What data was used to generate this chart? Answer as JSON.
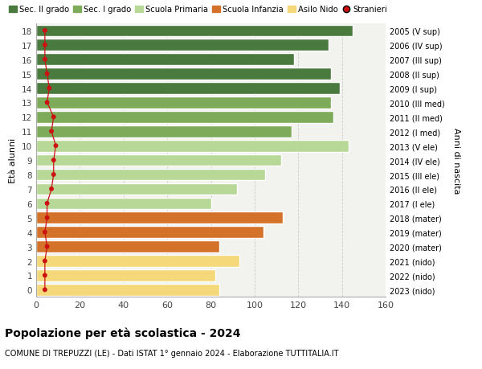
{
  "ages": [
    18,
    17,
    16,
    15,
    14,
    13,
    12,
    11,
    10,
    9,
    8,
    7,
    6,
    5,
    4,
    3,
    2,
    1,
    0
  ],
  "bar_values": [
    145,
    134,
    118,
    135,
    139,
    135,
    136,
    117,
    143,
    112,
    105,
    92,
    80,
    113,
    104,
    84,
    93,
    82,
    84
  ],
  "stranieri": [
    4,
    4,
    4,
    5,
    6,
    5,
    8,
    7,
    9,
    8,
    8,
    7,
    5,
    5,
    4,
    5,
    4,
    4,
    4
  ],
  "right_labels": [
    "2005 (V sup)",
    "2006 (IV sup)",
    "2007 (III sup)",
    "2008 (II sup)",
    "2009 (I sup)",
    "2010 (III med)",
    "2011 (II med)",
    "2012 (I med)",
    "2013 (V ele)",
    "2014 (IV ele)",
    "2015 (III ele)",
    "2016 (II ele)",
    "2017 (I ele)",
    "2018 (mater)",
    "2019 (mater)",
    "2020 (mater)",
    "2021 (nido)",
    "2022 (nido)",
    "2023 (nido)"
  ],
  "bar_colors": {
    "sec2": "#4a7a3d",
    "sec1": "#7dab5a",
    "primaria": "#b8d898",
    "infanzia": "#d4722a",
    "nido": "#f5d87a"
  },
  "stranieri_color": "#cc1111",
  "bg_color": "#ffffff",
  "plot_bg_color": "#f2f2ee",
  "grid_color": "#cccccc",
  "title": "Popolazione per età scolastica - 2024",
  "subtitle": "COMUNE DI TREPUZZI (LE) - Dati ISTAT 1° gennaio 2024 - Elaborazione TUTTITALIA.IT",
  "ylabel": "Età alunni",
  "ylabel_right": "Anni di nascita",
  "xlim_max": 160,
  "legend_labels": [
    "Sec. II grado",
    "Sec. I grado",
    "Scuola Primaria",
    "Scuola Infanzia",
    "Asilo Nido",
    "Stranieri"
  ],
  "bar_height": 0.82
}
